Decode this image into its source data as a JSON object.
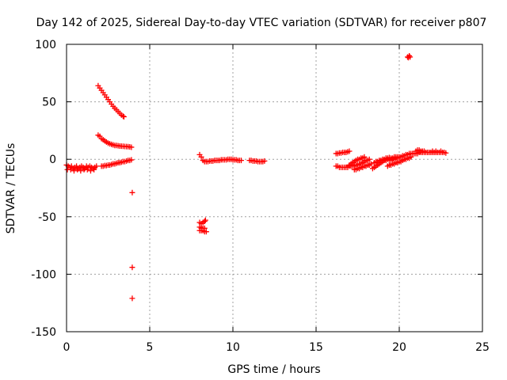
{
  "chart_data": {
    "type": "scatter",
    "title": "Day 142 of 2025, Sidereal Day-to-day VTEC variation (SDTVAR) for receiver p807",
    "xlabel": "GPS time / hours",
    "ylabel": "SDTVAR / TECUs",
    "xlim": [
      0,
      25
    ],
    "ylim": [
      -150,
      100
    ],
    "xticks": [
      "0",
      "5",
      "10",
      "15",
      "20",
      "25"
    ],
    "yticks": [
      "100",
      "50",
      "0",
      "-50",
      "-100",
      "-150"
    ],
    "grid": true,
    "marker": "+",
    "color": "#ff0000",
    "series": [
      {
        "name": "SDTVAR",
        "points": [
          [
            0.0,
            -5
          ],
          [
            0.1,
            -6
          ],
          [
            0.2,
            -7
          ],
          [
            0.3,
            -6
          ],
          [
            0.4,
            -8
          ],
          [
            0.5,
            -7
          ],
          [
            0.6,
            -6
          ],
          [
            0.7,
            -8
          ],
          [
            0.8,
            -7
          ],
          [
            0.9,
            -6
          ],
          [
            1.0,
            -7
          ],
          [
            1.1,
            -8
          ],
          [
            1.2,
            -6
          ],
          [
            1.3,
            -7
          ],
          [
            1.4,
            -6
          ],
          [
            1.5,
            -7
          ],
          [
            1.6,
            -8
          ],
          [
            1.7,
            -7
          ],
          [
            1.8,
            -6
          ],
          [
            0.05,
            -9
          ],
          [
            0.25,
            -9
          ],
          [
            0.45,
            -10
          ],
          [
            0.65,
            -9
          ],
          [
            0.85,
            -10
          ],
          [
            1.05,
            -9
          ],
          [
            1.25,
            -9
          ],
          [
            1.45,
            -10
          ],
          [
            1.65,
            -9
          ],
          [
            1.9,
            64
          ],
          [
            2.0,
            62
          ],
          [
            2.1,
            60
          ],
          [
            2.2,
            58
          ],
          [
            2.3,
            56
          ],
          [
            2.4,
            54
          ],
          [
            2.5,
            52
          ],
          [
            2.6,
            50
          ],
          [
            2.7,
            48
          ],
          [
            2.8,
            46
          ],
          [
            2.9,
            44.5
          ],
          [
            3.0,
            43
          ],
          [
            3.1,
            41.5
          ],
          [
            3.2,
            40
          ],
          [
            3.3,
            38.5
          ],
          [
            3.4,
            37.5
          ],
          [
            3.45,
            37
          ],
          [
            1.9,
            21
          ],
          [
            2.0,
            20
          ],
          [
            2.1,
            18
          ],
          [
            2.2,
            17
          ],
          [
            2.3,
            16
          ],
          [
            2.4,
            15
          ],
          [
            2.5,
            14
          ],
          [
            2.6,
            13.5
          ],
          [
            2.7,
            13
          ],
          [
            2.8,
            12.5
          ],
          [
            2.9,
            12
          ],
          [
            3.0,
            12
          ],
          [
            3.1,
            11.8
          ],
          [
            3.2,
            11.5
          ],
          [
            3.3,
            11.4
          ],
          [
            3.4,
            11.3
          ],
          [
            3.5,
            11.2
          ],
          [
            3.6,
            11.1
          ],
          [
            3.7,
            11
          ],
          [
            3.8,
            10.8
          ],
          [
            3.9,
            10.5
          ],
          [
            2.1,
            -6
          ],
          [
            2.2,
            -6
          ],
          [
            2.3,
            -5.5
          ],
          [
            2.4,
            -5.5
          ],
          [
            2.5,
            -5
          ],
          [
            2.6,
            -5
          ],
          [
            2.7,
            -4.5
          ],
          [
            2.8,
            -4
          ],
          [
            2.9,
            -4
          ],
          [
            3.0,
            -3.5
          ],
          [
            3.1,
            -3
          ],
          [
            3.2,
            -3
          ],
          [
            3.3,
            -2.5
          ],
          [
            3.4,
            -2
          ],
          [
            3.5,
            -2
          ],
          [
            3.6,
            -1.5
          ],
          [
            3.7,
            -1
          ],
          [
            3.8,
            -1
          ],
          [
            3.9,
            -0.5
          ],
          [
            3.95,
            -29
          ],
          [
            3.95,
            -94
          ],
          [
            3.95,
            -121
          ],
          [
            8.0,
            4
          ],
          [
            8.1,
            2
          ],
          [
            8.2,
            -1
          ],
          [
            8.3,
            -2
          ],
          [
            8.4,
            -2
          ],
          [
            8.5,
            -2
          ],
          [
            8.6,
            -1.5
          ],
          [
            8.7,
            -1.5
          ],
          [
            8.8,
            -1.5
          ],
          [
            8.9,
            -1
          ],
          [
            9.0,
            -1
          ],
          [
            9.1,
            -1
          ],
          [
            9.2,
            -1
          ],
          [
            9.3,
            -0.5
          ],
          [
            9.4,
            -0.5
          ],
          [
            9.5,
            -0.5
          ],
          [
            9.6,
            -0.5
          ],
          [
            9.7,
            0
          ],
          [
            9.8,
            0
          ],
          [
            9.9,
            0
          ],
          [
            10.0,
            -0.5
          ],
          [
            10.1,
            -0.5
          ],
          [
            10.2,
            -0.5
          ],
          [
            10.3,
            -1
          ],
          [
            10.4,
            -1
          ],
          [
            10.5,
            -1
          ],
          [
            11.0,
            -1
          ],
          [
            11.1,
            -1
          ],
          [
            11.2,
            -1.5
          ],
          [
            11.3,
            -1.5
          ],
          [
            11.4,
            -1.5
          ],
          [
            11.5,
            -2
          ],
          [
            11.6,
            -2
          ],
          [
            11.7,
            -2
          ],
          [
            11.8,
            -2
          ],
          [
            11.9,
            -1.5
          ],
          [
            8.0,
            -55
          ],
          [
            8.1,
            -56
          ],
          [
            8.2,
            -55
          ],
          [
            8.3,
            -54
          ],
          [
            8.35,
            -53
          ],
          [
            8.0,
            -59
          ],
          [
            8.1,
            -60
          ],
          [
            8.2,
            -60
          ],
          [
            8.3,
            -60
          ],
          [
            8.0,
            -62
          ],
          [
            8.1,
            -62
          ],
          [
            8.2,
            -62
          ],
          [
            8.3,
            -63
          ],
          [
            8.4,
            -63
          ],
          [
            16.2,
            5
          ],
          [
            16.3,
            5
          ],
          [
            16.4,
            5.5
          ],
          [
            16.5,
            5.5
          ],
          [
            16.6,
            6
          ],
          [
            16.7,
            6
          ],
          [
            16.8,
            6
          ],
          [
            16.9,
            6.5
          ],
          [
            17.0,
            7
          ],
          [
            16.2,
            -6
          ],
          [
            16.3,
            -6
          ],
          [
            16.4,
            -7
          ],
          [
            16.5,
            -7
          ],
          [
            16.6,
            -7
          ],
          [
            16.7,
            -7
          ],
          [
            16.8,
            -7
          ],
          [
            16.9,
            -7
          ],
          [
            17.0,
            -6
          ],
          [
            17.1,
            -6
          ],
          [
            17.2,
            -6
          ],
          [
            17.3,
            -6
          ],
          [
            17.4,
            -5
          ],
          [
            17.5,
            -5
          ],
          [
            17.6,
            -4
          ],
          [
            17.7,
            -4
          ],
          [
            17.8,
            -3
          ],
          [
            17.9,
            -2
          ],
          [
            18.0,
            -1
          ],
          [
            18.1,
            -1
          ],
          [
            18.2,
            0
          ],
          [
            17.0,
            -5
          ],
          [
            17.1,
            -4
          ],
          [
            17.2,
            -3
          ],
          [
            17.3,
            -2
          ],
          [
            17.4,
            -1
          ],
          [
            17.5,
            0
          ],
          [
            17.6,
            0
          ],
          [
            17.7,
            1
          ],
          [
            17.8,
            1
          ],
          [
            17.9,
            2
          ],
          [
            17.3,
            -9
          ],
          [
            17.4,
            -9
          ],
          [
            17.5,
            -8
          ],
          [
            17.6,
            -8
          ],
          [
            17.7,
            -7
          ],
          [
            17.8,
            -7
          ],
          [
            17.9,
            -6
          ],
          [
            18.0,
            -6
          ],
          [
            18.1,
            -5
          ],
          [
            18.2,
            -5
          ],
          [
            18.3,
            -4
          ],
          [
            18.4,
            -8
          ],
          [
            18.5,
            -7
          ],
          [
            18.6,
            -6
          ],
          [
            18.7,
            -5
          ],
          [
            18.8,
            -4
          ],
          [
            18.9,
            -3
          ],
          [
            19.0,
            -2
          ],
          [
            19.1,
            -1
          ],
          [
            19.2,
            -1
          ],
          [
            19.3,
            0
          ],
          [
            19.4,
            0
          ],
          [
            19.5,
            1
          ],
          [
            19.6,
            1
          ],
          [
            19.7,
            2
          ],
          [
            19.8,
            2
          ],
          [
            19.9,
            2
          ],
          [
            18.5,
            -3
          ],
          [
            18.6,
            -2
          ],
          [
            18.7,
            -2
          ],
          [
            18.8,
            -1
          ],
          [
            18.9,
            -1
          ],
          [
            19.0,
            0
          ],
          [
            19.1,
            0
          ],
          [
            19.2,
            1
          ],
          [
            19.3,
            1
          ],
          [
            19.4,
            1.5
          ],
          [
            19.3,
            -6
          ],
          [
            19.4,
            -5
          ],
          [
            19.5,
            -5
          ],
          [
            19.6,
            -4
          ],
          [
            19.7,
            -4
          ],
          [
            19.8,
            -3
          ],
          [
            19.9,
            -3
          ],
          [
            20.0,
            -2
          ],
          [
            20.1,
            -2
          ],
          [
            20.2,
            -1
          ],
          [
            20.3,
            0
          ],
          [
            20.4,
            0
          ],
          [
            20.5,
            1
          ],
          [
            20.6,
            1
          ],
          [
            20.7,
            2
          ],
          [
            19.5,
            -1
          ],
          [
            19.6,
            0
          ],
          [
            19.7,
            0
          ],
          [
            19.8,
            1
          ],
          [
            19.9,
            1
          ],
          [
            20.0,
            2
          ],
          [
            20.1,
            2
          ],
          [
            20.2,
            3
          ],
          [
            20.3,
            3
          ],
          [
            20.4,
            4
          ],
          [
            20.5,
            4
          ],
          [
            20.6,
            5
          ],
          [
            20.7,
            5
          ],
          [
            20.8,
            5
          ],
          [
            20.9,
            5
          ],
          [
            21.0,
            5
          ],
          [
            21.1,
            5
          ],
          [
            21.2,
            6
          ],
          [
            21.3,
            6
          ],
          [
            21.4,
            6
          ],
          [
            21.5,
            6
          ],
          [
            21.6,
            6
          ],
          [
            21.7,
            6
          ],
          [
            21.8,
            6
          ],
          [
            21.9,
            6
          ],
          [
            22.0,
            6
          ],
          [
            22.1,
            6
          ],
          [
            22.2,
            6
          ],
          [
            22.3,
            6
          ],
          [
            22.4,
            6
          ],
          [
            22.5,
            6
          ],
          [
            22.6,
            6
          ],
          [
            22.7,
            6
          ],
          [
            22.8,
            5.5
          ],
          [
            21.0,
            7
          ],
          [
            21.1,
            8
          ],
          [
            21.2,
            8
          ],
          [
            21.3,
            7
          ],
          [
            21.4,
            7
          ],
          [
            21.5,
            7
          ],
          [
            22.0,
            7
          ],
          [
            22.2,
            7
          ],
          [
            22.5,
            7
          ],
          [
            20.5,
            89
          ],
          [
            20.55,
            88.5
          ],
          [
            20.6,
            90
          ],
          [
            20.65,
            89
          ]
        ]
      }
    ]
  }
}
